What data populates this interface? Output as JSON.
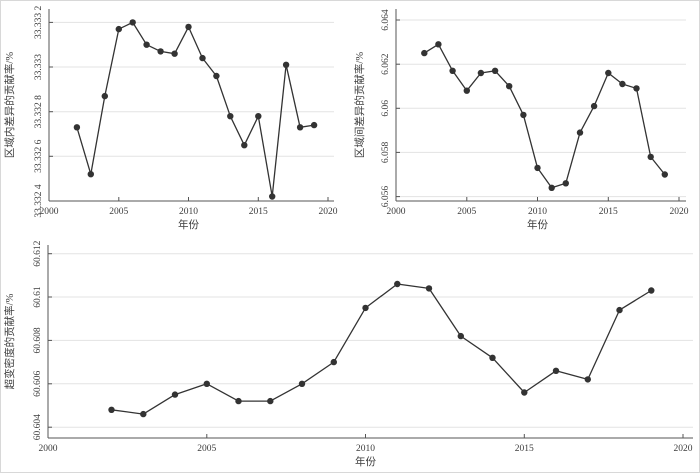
{
  "figure": {
    "background": "#ffffff",
    "border_color": "#d8d8d8"
  },
  "style": {
    "line_color": "#333333",
    "marker_color": "#333333",
    "grid_color": "#e3e3e3",
    "axis_color": "#555555",
    "text_color": "#3d3d3d"
  },
  "chart_data": [
    {
      "type": "line",
      "name": "intra-regional-difference-contribution",
      "title": "",
      "xlabel": "年份",
      "ylabel": "区域内差异的贡献率/%",
      "x": [
        2002,
        2003,
        2004,
        2005,
        2006,
        2007,
        2008,
        2009,
        2010,
        2011,
        2012,
        2013,
        2014,
        2015,
        2016,
        2017,
        2018,
        2019
      ],
      "values": [
        33.33273,
        33.33252,
        33.33287,
        33.33317,
        33.3332,
        33.3331,
        33.33307,
        33.33306,
        33.33318,
        33.33304,
        33.33296,
        33.33278,
        33.33265,
        33.33278,
        33.33242,
        33.33301,
        33.33273,
        33.33274
      ],
      "xlim": [
        2000,
        2020
      ],
      "ylim": [
        33.3324,
        33.33326
      ],
      "xtick_values": [
        2000,
        2005,
        2010,
        2015,
        2020
      ],
      "xtick_labels": [
        "2000",
        "2005",
        "2010",
        "2015",
        "2020"
      ],
      "ytick_values": [
        33.3324,
        33.3326,
        33.3328,
        33.333,
        33.3332
      ],
      "ytick_labels": [
        "33.332 4",
        "33.332 6",
        "33.332 8",
        "33.333",
        "33.333 2"
      ],
      "grid": "horizontal",
      "marker": "circle",
      "legend": null
    },
    {
      "type": "line",
      "name": "inter-regional-difference-contribution",
      "title": "",
      "xlabel": "年份",
      "ylabel": "区域间差异的贡献率/%",
      "x": [
        2002,
        2003,
        2004,
        2005,
        2006,
        2007,
        2008,
        2009,
        2010,
        2011,
        2012,
        2013,
        2014,
        2015,
        2016,
        2017,
        2018,
        2019
      ],
      "values": [
        6.0625,
        6.0629,
        6.0617,
        6.0608,
        6.0616,
        6.0617,
        6.061,
        6.0597,
        6.0573,
        6.0564,
        6.0566,
        6.0589,
        6.0601,
        6.0616,
        6.0611,
        6.0609,
        6.0578,
        6.057
      ],
      "xlim": [
        2000,
        2020
      ],
      "ylim": [
        6.0558,
        6.0645
      ],
      "xtick_values": [
        2000,
        2005,
        2010,
        2015,
        2020
      ],
      "xtick_labels": [
        "2000",
        "2005",
        "2010",
        "2015",
        "2020"
      ],
      "ytick_values": [
        6.056,
        6.058,
        6.06,
        6.062,
        6.064
      ],
      "ytick_labels": [
        "6.056",
        "6.058",
        "6.06",
        "6.062",
        "6.064"
      ],
      "grid": "horizontal",
      "marker": "circle",
      "legend": null
    },
    {
      "type": "line",
      "name": "hypervariable-density-contribution",
      "title": "",
      "xlabel": "年份",
      "ylabel": "超变密度的贡献率/%",
      "x": [
        2002,
        2003,
        2004,
        2005,
        2006,
        2007,
        2008,
        2009,
        2010,
        2011,
        2012,
        2013,
        2014,
        2015,
        2016,
        2017,
        2018,
        2019
      ],
      "values": [
        60.6048,
        60.6046,
        60.6055,
        60.606,
        60.6052,
        60.6052,
        60.606,
        60.607,
        60.6095,
        60.6106,
        60.6104,
        60.6082,
        60.6072,
        60.6056,
        60.6066,
        60.6062,
        60.6094,
        60.6103
      ],
      "xlim": [
        2000,
        2020
      ],
      "ylim": [
        60.6035,
        60.6124
      ],
      "xtick_values": [
        2000,
        2005,
        2010,
        2015,
        2020
      ],
      "xtick_labels": [
        "2000",
        "2005",
        "2010",
        "2015",
        "2020"
      ],
      "ytick_values": [
        60.604,
        60.606,
        60.608,
        60.61,
        60.612
      ],
      "ytick_labels": [
        "60.604",
        "60.606",
        "60.608",
        "60.61",
        "60.612"
      ],
      "grid": "horizontal",
      "marker": "circle",
      "legend": null
    }
  ]
}
